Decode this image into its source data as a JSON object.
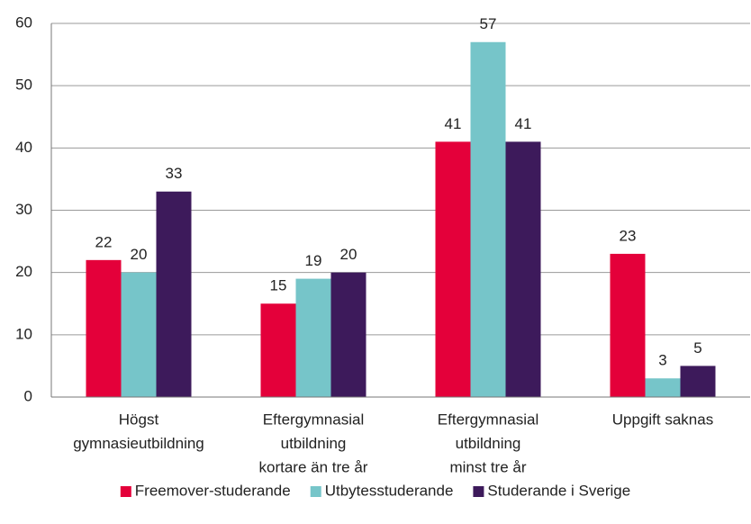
{
  "chart_data": {
    "type": "bar",
    "categories": [
      [
        "Högst",
        "gymnasieutbildning"
      ],
      [
        "Eftergymnasial",
        "utbildning",
        "kortare än tre år"
      ],
      [
        "Eftergymnasial",
        "utbildning",
        "minst tre år"
      ],
      [
        "Uppgift saknas"
      ]
    ],
    "series": [
      {
        "name": "Freemover-studerande",
        "color": "#e4003a",
        "values": [
          22,
          15,
          41,
          23
        ]
      },
      {
        "name": "Utbytesstuderande",
        "color": "#76c5c9",
        "values": [
          20,
          19,
          57,
          3
        ]
      },
      {
        "name": "Studerande i Sverige",
        "color": "#3d1a5b",
        "values": [
          33,
          20,
          41,
          5
        ]
      }
    ],
    "ylim": [
      0,
      60
    ],
    "yticks": [
      0,
      10,
      20,
      30,
      40,
      50,
      60
    ],
    "grid": true,
    "legend": "bottom"
  }
}
